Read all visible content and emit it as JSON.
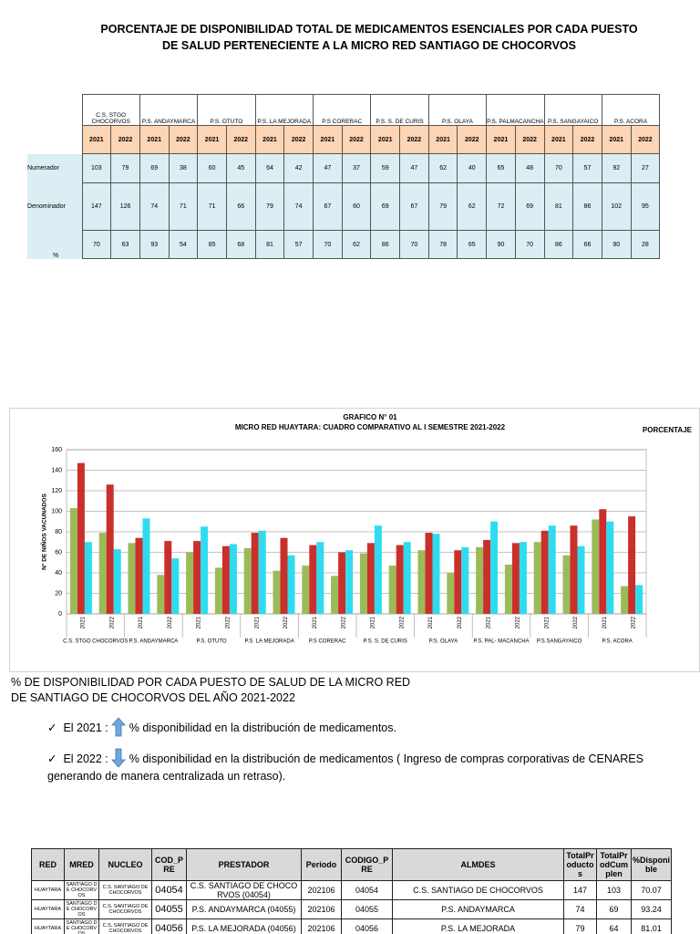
{
  "title": "PORCENTAJE DE DISPONIBILIDAD TOTAL DE MEDICAMENTOS ESENCIALES POR CADA PUESTO DE SALUD PERTENECIENTE  A LA MICRO RED SANTIAGO DE CHOCORVOS",
  "table": {
    "establishments": [
      "C.S. STGO CHOCORVOS",
      "P.S. ANDAYMARCA",
      "P.S. OTUTO",
      "P.S. LA MEJORADA",
      "P.S CORERAC",
      "P.S. S. DE CURIS",
      "P.S. OLAYA",
      "P.S. PALMACANCHA",
      "P.S. SANGAYAICO",
      "P.S. ACORA"
    ],
    "years": [
      "2021",
      "2022"
    ],
    "rows": [
      {
        "label": "Numerador",
        "values": [
          103,
          79,
          69,
          38,
          60,
          45,
          64,
          42,
          47,
          37,
          59,
          47,
          62,
          40,
          65,
          48,
          70,
          57,
          92,
          27
        ]
      },
      {
        "label": "Denominador",
        "values": [
          147,
          126,
          74,
          71,
          71,
          66,
          79,
          74,
          67,
          60,
          69,
          67,
          79,
          62,
          72,
          69,
          81,
          86,
          102,
          95
        ]
      },
      {
        "label": "%",
        "values": [
          70,
          63,
          93,
          54,
          85,
          68,
          81,
          57,
          70,
          62,
          86,
          70,
          78,
          65,
          90,
          70,
          86,
          66,
          90,
          28
        ]
      }
    ]
  },
  "chart_data": {
    "type": "bar",
    "title": "GRAFICO N° 01",
    "subtitle": "MICRO RED HUAYTARA: CUADRO COMPARATIVO AL I SEMESTRE 2021-2022",
    "annotation": "PORCENTAJE",
    "y_label": "N° DE NIÑOS VACUNADOS",
    "categories": [
      "2021",
      "2022",
      "2021",
      "2022",
      "2021",
      "2022",
      "2021",
      "2022",
      "2021",
      "2022",
      "2021",
      "2022",
      "2021",
      "2022",
      "2021",
      "2022",
      "2021",
      "2022",
      "2021",
      "2022"
    ],
    "groups": [
      "C.S. STGO CHOCORVOS",
      "P.S. ANDAYMARCA",
      "P.S. OTUTO",
      "P.S. LA MEJORADA",
      "P.S CORERAC",
      "P.S. S. DE CURIS",
      "P.S. OLAYA",
      "P.S. PAL- MACANCHA",
      "P.S.SANGAYAICO",
      "P.S. ACORA"
    ],
    "series": [
      {
        "color": "#9bbb59",
        "values": [
          103,
          79,
          69,
          38,
          60,
          45,
          64,
          42,
          47,
          37,
          59,
          47,
          62,
          40,
          65,
          48,
          70,
          57,
          92,
          27
        ]
      },
      {
        "color": "#c9302c",
        "values": [
          147,
          126,
          74,
          71,
          71,
          66,
          79,
          74,
          67,
          60,
          69,
          67,
          79,
          62,
          72,
          69,
          81,
          86,
          102,
          95
        ]
      },
      {
        "color": "#2fdcef",
        "values": [
          70,
          63,
          93,
          54,
          85,
          68,
          81,
          57,
          70,
          62,
          86,
          70,
          78,
          65,
          90,
          70,
          86,
          66,
          90,
          28
        ]
      }
    ],
    "ylim": [
      0,
      160
    ],
    "yticks": [
      0,
      20,
      40,
      60,
      80,
      100,
      120,
      140,
      160
    ],
    "grid": true
  },
  "section": {
    "heading": "% DE DISPONIBILIDAD POR CADA PUESTO DE SALUD DE LA MICRO RED DE SANTIAGO DE CHOCORVOS DEL AÑO 2021-2022",
    "bullets": [
      {
        "lead": "El 2021 :",
        "text": "% disponibilidad en la distribución de medicamentos."
      },
      {
        "lead": "El 2022 :",
        "text": "% disponibilidad en la distribución de medicamentos ( Ingreso de compras corporativas de CENARES generando de manera centralizada un retraso)."
      }
    ]
  },
  "detail_table": {
    "headers": [
      "RED",
      "MRED",
      "NUCLEO",
      "COD_PRE",
      "PRESTADOR",
      "Periodo",
      "CODIGO_PRE",
      "ALMDES",
      "TotalProductos",
      "TotalProdCumplen",
      "%Disponible"
    ],
    "rows": [
      [
        "HUAYTARA",
        "SANTIAGO DE CHOCORVOS",
        "C.S. SANTIAGO DE CHOCORVOS",
        "04054",
        "C.S. SANTIAGO DE CHOCORVOS (04054)",
        202106,
        "04054",
        "C.S. SANTIAGO DE CHOCORVOS",
        147,
        103,
        70.07
      ],
      [
        "HUAYTARA",
        "SANTIAGO DE CHOCORVOS",
        "C.S. SANTIAGO DE CHOCORVOS",
        "04055",
        "P.S. ANDAYMARCA (04055)",
        202106,
        "04055",
        "P.S. ANDAYMARCA",
        74,
        69,
        93.24
      ],
      [
        "HUAYTARA",
        "SANTIAGO DE CHOCORVOS",
        "C.S. SANTIAGO DE CHOCORVOS",
        "04056",
        "P.S. LA MEJORADA (04056)",
        202106,
        "04056",
        "P.S. LA MEJORADA",
        79,
        64,
        81.01
      ]
    ]
  }
}
